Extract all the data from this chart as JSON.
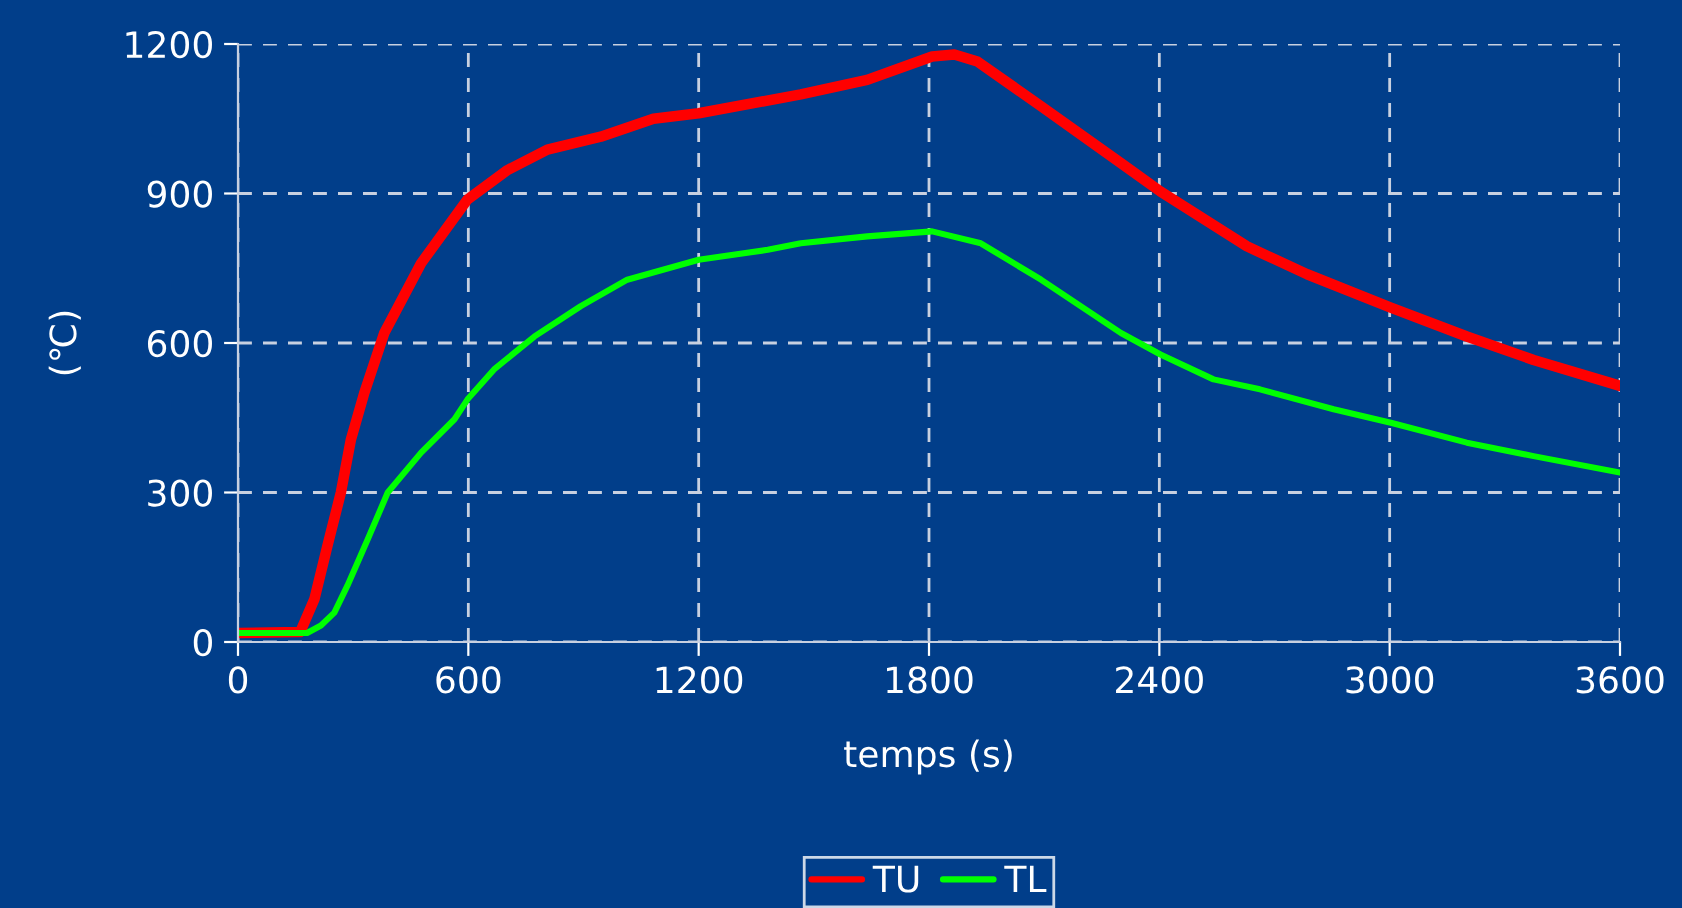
{
  "chart_data": {
    "type": "line",
    "xlabel": "temps (s)",
    "ylabel": "(℃)",
    "xlim": [
      0,
      3600
    ],
    "xticks": [
      0,
      600,
      1200,
      1800,
      2400,
      3000,
      3600
    ],
    "ylim": [
      0,
      1200
    ],
    "yticks": [
      0,
      300,
      600,
      900,
      1200
    ],
    "grid": true,
    "legend": "bottom",
    "marker": "none",
    "line_style": "solid",
    "series": [
      {
        "name": "TU",
        "color": "#ff0000",
        "x": [
          0,
          162,
          199,
          233,
          268,
          294,
          329,
          381,
          477,
          598,
          702,
          806,
          945,
          1082,
          1200,
          1466,
          1639,
          1808,
          1866,
          1926,
          2092,
          2300,
          2403,
          2628,
          2785,
          3003,
          3201,
          3375,
          3600
        ],
        "values": [
          18,
          20,
          86,
          193,
          300,
          406,
          500,
          620,
          760,
          888,
          947,
          988,
          1014,
          1050,
          1061,
          1099,
          1128,
          1175,
          1179,
          1165,
          1075,
          961,
          904,
          794,
          738,
          671,
          613,
          566,
          514
        ]
      },
      {
        "name": "TL",
        "color": "#00ff00",
        "x": [
          0,
          180,
          216,
          251,
          285,
          338,
          390,
          477,
          564,
          598,
          667,
          772,
          893,
          1014,
          1200,
          1380,
          1466,
          1639,
          1808,
          1935,
          2092,
          2300,
          2403,
          2541,
          2662,
          2854,
          3003,
          3201,
          3375,
          3600
        ],
        "values": [
          18,
          18,
          33,
          59,
          113,
          206,
          300,
          380,
          447,
          487,
          547,
          613,
          674,
          727,
          767,
          787,
          800,
          814,
          824,
          800,
          727,
          620,
          577,
          527,
          507,
          467,
          440,
          400,
          373,
          340
        ]
      }
    ]
  }
}
